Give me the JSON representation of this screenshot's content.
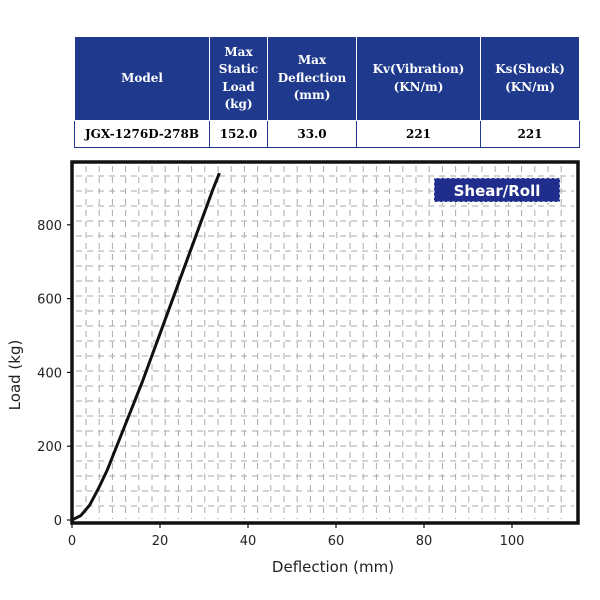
{
  "table": {
    "headers": [
      "Model",
      "Max Static Load (kg)",
      "Max Deflection (mm)",
      "Kv(Vibration) (KN/m)",
      "Ks(Shock) (KN/m)"
    ],
    "row": [
      "JGX-1276D-278B",
      "152.0",
      "33.0",
      "221",
      "221"
    ]
  },
  "chart_data": {
    "type": "line",
    "title": "",
    "badge": "Shear/Roll",
    "xlabel": "Deflection (mm)",
    "ylabel": "Load (kg)",
    "xlim": [
      0,
      115
    ],
    "ylim": [
      0,
      960
    ],
    "xticks": [
      0,
      20,
      40,
      60,
      80,
      100
    ],
    "yticks": [
      0,
      200,
      400,
      600,
      800
    ],
    "grid": true,
    "series": [
      {
        "x": [
          0,
          2,
          4,
          6,
          8,
          10,
          12,
          14,
          16,
          18,
          20,
          22,
          24,
          26,
          28,
          30,
          32,
          33.5
        ],
        "y": [
          0,
          12,
          40,
          85,
          135,
          195,
          255,
          315,
          375,
          440,
          505,
          570,
          635,
          700,
          765,
          830,
          895,
          940
        ]
      }
    ],
    "colors": {
      "line": "#111111",
      "badge_bg": "#1f2e8c",
      "frame": "#111111",
      "grid": "#bbbbbb"
    }
  }
}
